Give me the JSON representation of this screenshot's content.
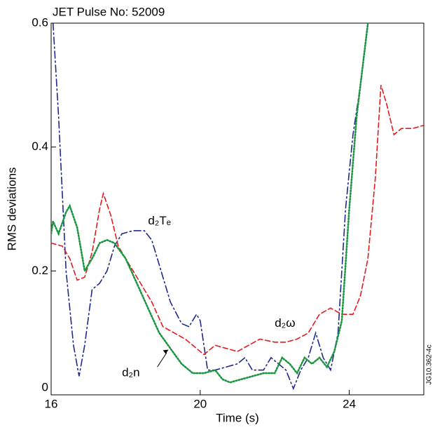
{
  "chart_data": {
    "type": "line",
    "title": "JET Pulse No: 52009",
    "x_label": "Time (s)",
    "y_label": "RMS deviations",
    "figure_id": "JG10.362-4c",
    "xlim": [
      16,
      26
    ],
    "ylim": [
      0,
      0.6
    ],
    "xticks": [
      16,
      20,
      24
    ],
    "yticks": [
      0,
      0.2,
      0.4,
      0.6
    ],
    "series": [
      {
        "name": "d₂Tₑ",
        "color": "#1f2a8c",
        "style": "dashdot",
        "x": [
          16.05,
          16.2,
          16.4,
          16.6,
          16.75,
          16.9,
          17.1,
          17.3,
          17.5,
          17.7,
          17.9,
          18.2,
          18.5,
          18.7,
          18.9,
          19.2,
          19.5,
          19.7,
          19.9,
          20.0,
          20.2,
          20.4,
          20.7,
          21.0,
          21.2,
          21.4,
          21.7,
          21.9,
          22.1,
          22.3,
          22.5,
          22.7,
          22.9,
          23.1,
          23.3,
          23.5,
          23.7,
          23.9,
          24.1,
          24.3,
          24.5
        ],
        "values": [
          0.6,
          0.45,
          0.2,
          0.08,
          0.03,
          0.08,
          0.17,
          0.18,
          0.2,
          0.24,
          0.26,
          0.265,
          0.265,
          0.25,
          0.21,
          0.15,
          0.115,
          0.11,
          0.13,
          0.12,
          0.04,
          0.04,
          0.045,
          0.05,
          0.06,
          0.04,
          0.04,
          0.06,
          0.05,
          0.04,
          0.01,
          0.04,
          0.06,
          0.1,
          0.06,
          0.04,
          0.1,
          0.3,
          0.42,
          0.5,
          0.6
        ]
      },
      {
        "name": "d₂ω",
        "color": "#e41a1c",
        "style": "dashed",
        "x": [
          16.0,
          16.3,
          16.5,
          16.7,
          16.9,
          17.1,
          17.3,
          17.4,
          17.6,
          17.8,
          18.1,
          18.4,
          18.7,
          19.0,
          19.3,
          19.6,
          19.9,
          20.1,
          20.4,
          20.7,
          21.0,
          21.3,
          21.6,
          22.0,
          22.3,
          22.6,
          22.9,
          23.2,
          23.5,
          23.8,
          24.1,
          24.3,
          24.5,
          24.7,
          24.85,
          25.0,
          25.2,
          25.4,
          25.7,
          26.0
        ],
        "values": [
          0.245,
          0.24,
          0.22,
          0.185,
          0.19,
          0.23,
          0.3,
          0.325,
          0.29,
          0.24,
          0.21,
          0.18,
          0.15,
          0.11,
          0.1,
          0.09,
          0.075,
          0.065,
          0.08,
          0.075,
          0.07,
          0.08,
          0.09,
          0.085,
          0.085,
          0.09,
          0.1,
          0.13,
          0.14,
          0.13,
          0.13,
          0.16,
          0.22,
          0.35,
          0.5,
          0.47,
          0.42,
          0.43,
          0.43,
          0.435
        ]
      },
      {
        "name": "d₂n",
        "color": "#1a9641",
        "style": "dotted",
        "x": [
          16.0,
          16.05,
          16.2,
          16.4,
          16.5,
          16.7,
          16.9,
          17.1,
          17.3,
          17.5,
          17.7,
          18.0,
          18.3,
          18.6,
          18.9,
          19.2,
          19.5,
          19.8,
          20.1,
          20.4,
          20.6,
          20.8,
          21.1,
          21.4,
          21.7,
          22.0,
          22.2,
          22.4,
          22.6,
          22.8,
          23.0,
          23.2,
          23.4,
          23.6,
          23.8,
          24.0,
          24.2,
          24.5
        ],
        "values": [
          0.26,
          0.28,
          0.26,
          0.295,
          0.305,
          0.27,
          0.2,
          0.22,
          0.245,
          0.25,
          0.245,
          0.22,
          0.18,
          0.14,
          0.1,
          0.075,
          0.05,
          0.035,
          0.035,
          0.04,
          0.025,
          0.02,
          0.025,
          0.03,
          0.035,
          0.035,
          0.06,
          0.05,
          0.035,
          0.06,
          0.05,
          0.06,
          0.045,
          0.07,
          0.12,
          0.3,
          0.45,
          0.6
        ]
      }
    ]
  }
}
